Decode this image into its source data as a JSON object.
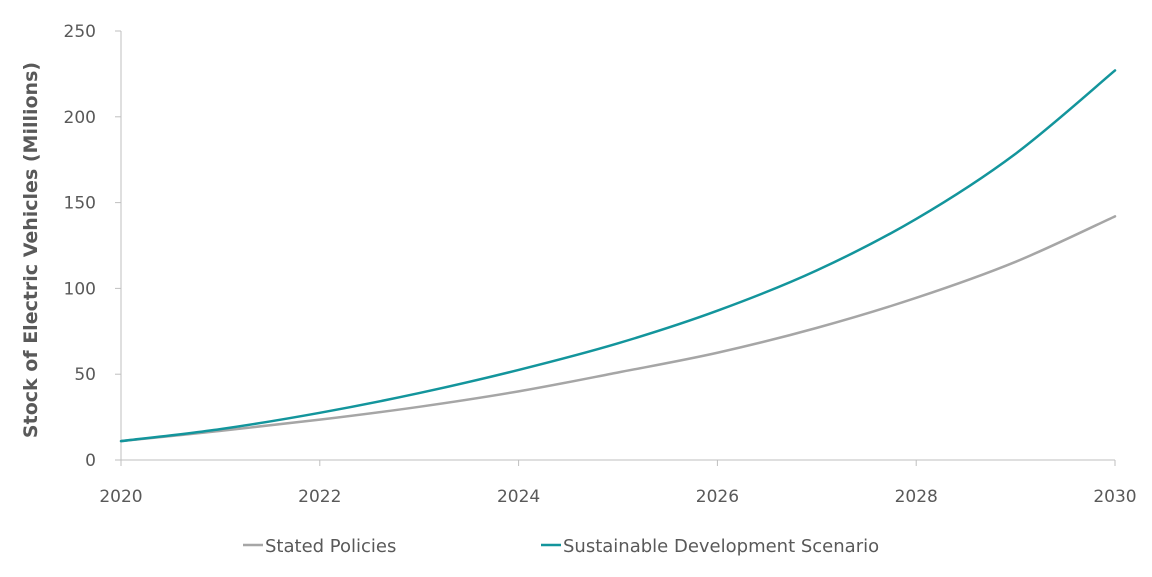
{
  "chart_data": {
    "type": "line",
    "title": "",
    "xlabel": "",
    "ylabel": "Stock of Electric Vehicles (Millions)",
    "x": [
      2020,
      2021,
      2022,
      2023,
      2024,
      2025,
      2026,
      2027,
      2028,
      2029,
      2030
    ],
    "xticks": [
      2020,
      2022,
      2024,
      2026,
      2028,
      2030
    ],
    "xlim": [
      2020,
      2030
    ],
    "yticks": [
      0,
      50,
      100,
      150,
      200,
      250
    ],
    "ylim": [
      0,
      250
    ],
    "grid": false,
    "legend_position": "bottom",
    "series": [
      {
        "name": "Stated Policies",
        "color": "#a6a6a6",
        "values": [
          11,
          17,
          23.5,
          31,
          40,
          51,
          62.5,
          77,
          94.5,
          115.5,
          142
        ]
      },
      {
        "name": "Sustainable Development Scenario",
        "color": "#13959c",
        "values": [
          11,
          18,
          27.5,
          39,
          52.5,
          68,
          87,
          110.5,
          140.5,
          178.5,
          227
        ]
      }
    ]
  },
  "colors": {
    "axis": "#bfbfbf",
    "text": "#595959"
  }
}
